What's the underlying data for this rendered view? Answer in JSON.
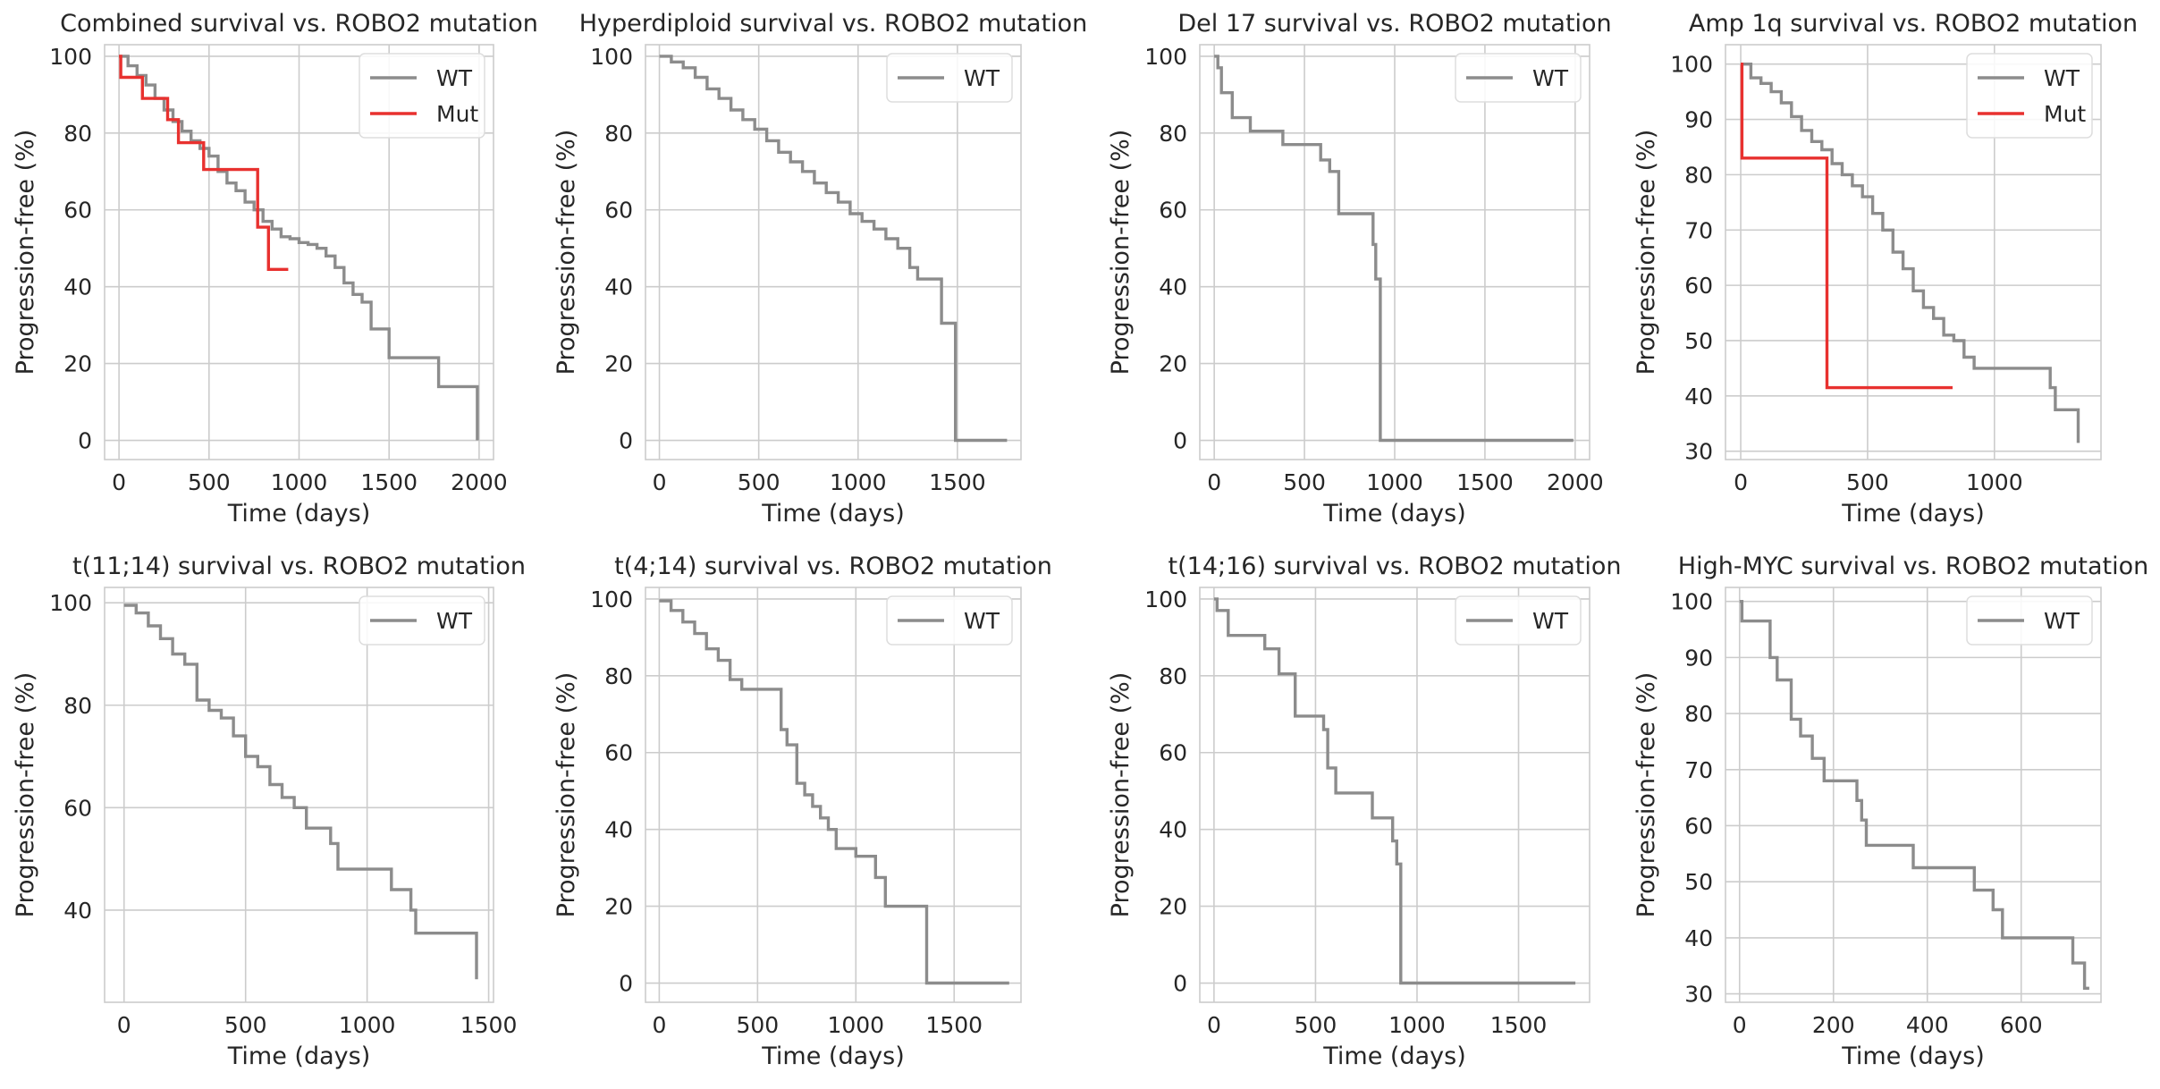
{
  "chart_data": [
    {
      "type": "line",
      "title": "Combined survival vs. ROBO2 mutation",
      "xlabel": "Time (days)",
      "ylabel": "Progression-free (%)",
      "xlim": [
        -80,
        2080
      ],
      "ylim": [
        -5,
        103
      ],
      "xticks": [
        0,
        500,
        1000,
        1500,
        2000
      ],
      "yticks": [
        0,
        20,
        40,
        60,
        80,
        100
      ],
      "grid": true,
      "legend": "top-right",
      "series": [
        {
          "name": "WT",
          "color": "#8c8c8c",
          "x": [
            0,
            50,
            100,
            150,
            200,
            250,
            300,
            350,
            400,
            450,
            500,
            550,
            600,
            650,
            700,
            750,
            800,
            850,
            900,
            950,
            1000,
            1050,
            1100,
            1150,
            1200,
            1250,
            1300,
            1350,
            1400,
            1450,
            1500,
            1760,
            1775,
            1990
          ],
          "y": [
            100,
            97.5,
            95,
            92.5,
            89,
            86,
            83,
            80.5,
            78,
            76,
            74,
            70,
            67,
            65,
            62,
            60,
            57,
            55,
            53,
            52.5,
            51.5,
            51,
            50,
            48,
            45,
            41,
            38,
            36,
            29,
            29,
            21.5,
            21.5,
            14,
            0
          ]
        },
        {
          "name": "Mut",
          "color": "#e8312f",
          "x": [
            0,
            10,
            130,
            270,
            330,
            470,
            770,
            830,
            940
          ],
          "y": [
            100,
            94.5,
            89,
            83.5,
            77.5,
            70.5,
            55.5,
            44.5,
            44.5
          ]
        }
      ]
    },
    {
      "type": "line",
      "title": "Hyperdiploid survival vs. ROBO2 mutation",
      "xlabel": "Time (days)",
      "ylabel": "Progression-free (%)",
      "xlim": [
        -70,
        1820
      ],
      "ylim": [
        -5,
        103
      ],
      "xticks": [
        0,
        500,
        1000,
        1500
      ],
      "yticks": [
        0,
        20,
        40,
        60,
        80,
        100
      ],
      "grid": true,
      "legend": "top-right",
      "series": [
        {
          "name": "WT",
          "color": "#8c8c8c",
          "x": [
            0,
            60,
            120,
            180,
            240,
            300,
            360,
            420,
            480,
            540,
            600,
            660,
            720,
            780,
            840,
            900,
            960,
            1020,
            1080,
            1140,
            1200,
            1260,
            1300,
            1360,
            1420,
            1450,
            1480,
            1490,
            1750
          ],
          "y": [
            100,
            98.5,
            97,
            94.5,
            91.5,
            89,
            86,
            83.5,
            81,
            78,
            75,
            72.5,
            70,
            67,
            64.5,
            62,
            59,
            57,
            55,
            52.5,
            50,
            45,
            42,
            42,
            30.5,
            30.5,
            30.5,
            0,
            0
          ]
        }
      ]
    },
    {
      "type": "line",
      "title": "Del 17 survival vs. ROBO2 mutation",
      "xlabel": "Time (days)",
      "ylabel": "Progression-free (%)",
      "xlim": [
        -80,
        2080
      ],
      "ylim": [
        -5,
        103
      ],
      "xticks": [
        0,
        500,
        1000,
        1500,
        2000
      ],
      "yticks": [
        0,
        20,
        40,
        60,
        80,
        100
      ],
      "grid": true,
      "legend": "top-right",
      "series": [
        {
          "name": "WT",
          "color": "#8c8c8c",
          "x": [
            0,
            20,
            40,
            100,
            200,
            380,
            590,
            640,
            690,
            880,
            895,
            905,
            920,
            1990
          ],
          "y": [
            100,
            97,
            90.5,
            84,
            80.5,
            77,
            73,
            70,
            59,
            51,
            42,
            42,
            0,
            0
          ]
        }
      ]
    },
    {
      "type": "line",
      "title": "Amp 1q survival vs. ROBO2 mutation",
      "xlabel": "Time (days)",
      "ylabel": "Progression-free (%)",
      "xlim": [
        -60,
        1420
      ],
      "ylim": [
        28.5,
        103.5
      ],
      "xticks": [
        0,
        500,
        1000
      ],
      "yticks": [
        30,
        40,
        50,
        60,
        70,
        80,
        90,
        100
      ],
      "grid": true,
      "legend": "top-right",
      "series": [
        {
          "name": "WT",
          "color": "#8c8c8c",
          "x": [
            0,
            40,
            80,
            120,
            160,
            200,
            240,
            280,
            320,
            360,
            400,
            440,
            480,
            520,
            560,
            600,
            640,
            680,
            720,
            760,
            800,
            840,
            880,
            920,
            1190,
            1220,
            1240,
            1330
          ],
          "y": [
            100,
            97.5,
            96.5,
            95,
            93,
            90.5,
            88,
            86,
            84.5,
            82,
            80,
            78,
            76,
            73,
            70,
            66,
            63,
            59,
            56,
            54,
            51,
            50,
            47,
            45,
            45,
            41.5,
            37.5,
            31.5
          ]
        },
        {
          "name": "Mut",
          "color": "#e8312f",
          "x": [
            0,
            5,
            335,
            340,
            835
          ],
          "y": [
            100,
            83,
            83,
            41.5,
            41.5
          ]
        }
      ]
    },
    {
      "type": "line",
      "title": "t(11;14) survival vs. ROBO2 mutation",
      "xlabel": "Time (days)",
      "ylabel": "Progression-free (%)",
      "xlim": [
        -80,
        1520
      ],
      "ylim": [
        22,
        103
      ],
      "xticks": [
        0,
        500,
        1000,
        1500
      ],
      "yticks": [
        40,
        60,
        80,
        100
      ],
      "grid": true,
      "legend": "top-right",
      "series": [
        {
          "name": "WT",
          "color": "#8c8c8c",
          "x": [
            0,
            50,
            100,
            150,
            200,
            250,
            300,
            350,
            400,
            450,
            500,
            550,
            600,
            650,
            700,
            750,
            800,
            850,
            880,
            1050,
            1100,
            1180,
            1200,
            1450
          ],
          "y": [
            99.5,
            98,
            95.5,
            93,
            90,
            88,
            81,
            79,
            77.5,
            74,
            70,
            68,
            64.5,
            62,
            60,
            56,
            56,
            53,
            48,
            48,
            44,
            40,
            35.5,
            26.5
          ]
        }
      ]
    },
    {
      "type": "line",
      "title": "t(4;14) survival vs. ROBO2 mutation",
      "xlabel": "Time (days)",
      "ylabel": "Progression-free (%)",
      "xlim": [
        -70,
        1840
      ],
      "ylim": [
        -5,
        103
      ],
      "xticks": [
        0,
        500,
        1000,
        1500
      ],
      "yticks": [
        0,
        20,
        40,
        60,
        80,
        100
      ],
      "grid": true,
      "legend": "top-right",
      "series": [
        {
          "name": "WT",
          "color": "#8c8c8c",
          "x": [
            0,
            60,
            120,
            180,
            240,
            300,
            360,
            420,
            480,
            540,
            620,
            650,
            700,
            740,
            780,
            820,
            860,
            900,
            1000,
            1100,
            1150,
            1350,
            1360,
            1780
          ],
          "y": [
            99.5,
            97,
            94,
            91,
            87,
            84,
            79,
            76.5,
            76.5,
            76.5,
            66,
            62,
            52,
            49,
            46,
            43,
            40,
            35,
            33,
            27.5,
            20,
            20,
            0,
            0
          ]
        }
      ]
    },
    {
      "type": "line",
      "title": "t(14;16) survival vs. ROBO2 mutation",
      "xlabel": "Time (days)",
      "ylabel": "Progression-free (%)",
      "xlim": [
        -70,
        1850
      ],
      "ylim": [
        -5,
        103
      ],
      "xticks": [
        0,
        500,
        1000,
        1500
      ],
      "yticks": [
        0,
        20,
        40,
        60,
        80,
        100
      ],
      "grid": true,
      "legend": "top-right",
      "series": [
        {
          "name": "WT",
          "color": "#8c8c8c",
          "x": [
            0,
            15,
            70,
            250,
            320,
            400,
            540,
            560,
            600,
            780,
            880,
            900,
            920,
            1780
          ],
          "y": [
            100,
            97,
            90.5,
            87,
            80.5,
            69.5,
            66,
            56,
            49.5,
            43,
            37,
            31,
            0,
            0
          ]
        }
      ]
    },
    {
      "type": "line",
      "title": "High-MYC survival vs. ROBO2 mutation",
      "xlabel": "Time (days)",
      "ylabel": "Progression-free (%)",
      "xlim": [
        -30,
        770
      ],
      "ylim": [
        28.5,
        102.5
      ],
      "xticks": [
        0,
        200,
        400,
        600
      ],
      "yticks": [
        30,
        40,
        50,
        60,
        70,
        80,
        90,
        100
      ],
      "grid": true,
      "legend": "top-right",
      "series": [
        {
          "name": "WT",
          "color": "#8c8c8c",
          "x": [
            0,
            5,
            60,
            65,
            80,
            110,
            130,
            155,
            180,
            250,
            260,
            270,
            370,
            500,
            540,
            560,
            710,
            735,
            745
          ],
          "y": [
            100,
            96.5,
            96.5,
            90,
            86,
            79,
            76,
            72,
            68,
            64.5,
            61,
            56.5,
            52.5,
            48.5,
            45,
            40,
            35.5,
            31,
            31
          ]
        }
      ]
    }
  ]
}
